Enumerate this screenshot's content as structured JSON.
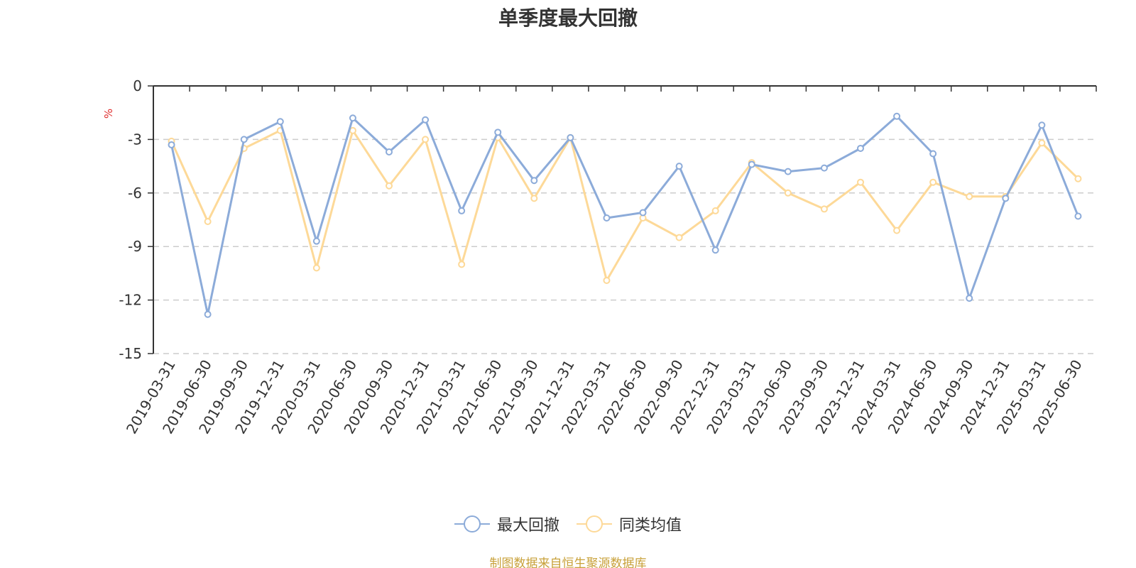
{
  "chart_data": {
    "type": "line",
    "title": "单季度最大回撤",
    "ylabel": "%",
    "ylim": [
      -15,
      0
    ],
    "yticks": [
      0,
      -3,
      -6,
      -9,
      -12,
      -15
    ],
    "grid": true,
    "legend_position": "bottom-center",
    "categories": [
      "2019-03-31",
      "2019-06-30",
      "2019-09-30",
      "2019-12-31",
      "2020-03-31",
      "2020-06-30",
      "2020-09-30",
      "2020-12-31",
      "2021-03-31",
      "2021-06-30",
      "2021-09-30",
      "2021-12-31",
      "2022-03-31",
      "2022-06-30",
      "2022-09-30",
      "2022-12-31",
      "2023-03-31",
      "2023-06-30",
      "2023-09-30",
      "2023-12-31",
      "2024-03-31",
      "2024-06-30",
      "2024-09-30",
      "2024-12-31",
      "2025-03-31",
      "2025-06-30"
    ],
    "series": [
      {
        "name": "最大回撤",
        "color": "#8cabd9",
        "values": [
          -3.3,
          -12.8,
          -3.0,
          -2.0,
          -8.7,
          -1.8,
          -3.7,
          -1.9,
          -7.0,
          -2.6,
          -5.3,
          -2.9,
          -7.4,
          -7.1,
          -4.5,
          -9.2,
          -4.4,
          -4.8,
          -4.6,
          -3.5,
          -1.7,
          -3.8,
          -11.9,
          -6.3,
          -2.2,
          -7.3
        ]
      },
      {
        "name": "同类均值",
        "color": "#fdd998",
        "values": [
          -3.1,
          -7.6,
          -3.5,
          -2.5,
          -10.2,
          -2.5,
          -5.6,
          -3.0,
          -10.0,
          -2.9,
          -6.3,
          -2.9,
          -10.9,
          -7.4,
          -8.5,
          -7.0,
          -4.3,
          -6.0,
          -6.9,
          -5.4,
          -8.1,
          -5.4,
          -6.2,
          -6.2,
          -3.2,
          -5.2
        ]
      }
    ]
  },
  "source_note": "制图数据来自恒生聚源数据库"
}
